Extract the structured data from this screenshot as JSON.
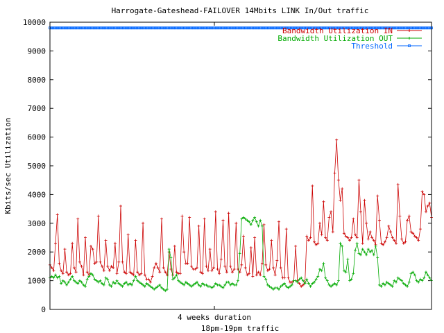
{
  "chart_data": {
    "type": "line",
    "title": "Harrogate-Gateshead-FAILOVER 14Mbits LINK In/Out traffic",
    "xlabel": "18pm-19pm traffic",
    "ylabel": "Kbits/sec Utilization",
    "x_tick_label": "4 weeks duration",
    "ylim": [
      0,
      10000
    ],
    "yticks": [
      0,
      1000,
      2000,
      3000,
      4000,
      5000,
      6000,
      7000,
      8000,
      9000,
      10000
    ],
    "grid": false,
    "legend_position": "top-right",
    "series": [
      {
        "name": "Bandwidth Utilization IN",
        "color": "#cc0000",
        "marker": "plus",
        "values": [
          1550,
          1450,
          1350,
          2300,
          3300,
          1600,
          1350,
          1250,
          2100,
          1300,
          1200,
          1250,
          2300,
          1450,
          1300,
          3150,
          1650,
          1500,
          1200,
          2500,
          1300,
          1200,
          2200,
          2100,
          1600,
          1650,
          3250,
          1650,
          1500,
          1350,
          2400,
          1500,
          1350,
          1500,
          1450,
          2300,
          1250,
          1650,
          3600,
          1650,
          1300,
          1250,
          2600,
          1300,
          1250,
          1200,
          2400,
          1300,
          1200,
          1250,
          3000,
          1200,
          1050,
          1050,
          950,
          1150,
          1450,
          1600,
          1450,
          1300,
          3150,
          1450,
          1300,
          1200,
          2000,
          1400,
          1200,
          2200,
          1300,
          1250,
          1250,
          3250,
          2000,
          1600,
          1600,
          3200,
          1500,
          1400,
          1400,
          1450,
          2900,
          1300,
          1250,
          3150,
          1500,
          1350,
          2100,
          1350,
          1450,
          3400,
          1400,
          1250,
          1750,
          3100,
          1500,
          1300,
          3350,
          1500,
          1300,
          1400,
          3000,
          1400,
          1300,
          1550,
          2550,
          1450,
          1200,
          1250,
          2150,
          1150,
          2500,
          1200,
          1300,
          1200,
          1600,
          2950,
          1550,
          1350,
          1400,
          2400,
          1450,
          1200,
          1700,
          3050,
          1450,
          1100,
          1100,
          2800,
          1100,
          950,
          950,
          1000,
          2200,
          1000,
          900,
          800,
          850,
          950,
          2550,
          2400,
          2500,
          4300,
          2350,
          2250,
          2300,
          3000,
          2600,
          3750,
          2500,
          2400,
          3200,
          3400,
          2700,
          4750,
          5900,
          4500,
          3800,
          4200,
          2650,
          2550,
          2500,
          2400,
          2500,
          3150,
          2600,
          2500,
          4500,
          3400,
          2300,
          3800,
          3000,
          2450,
          2700,
          2500,
          2400,
          2250,
          3950,
          3100,
          2300,
          2250,
          2350,
          2500,
          2900,
          2700,
          2500,
          2400,
          2300,
          4350,
          3250,
          2450,
          2300,
          2350,
          3100,
          3250,
          2700,
          2650,
          2550,
          2500,
          2400,
          2800,
          4100,
          4000,
          3400,
          3600,
          3700,
          3200
        ]
      },
      {
        "name": "Bandwidth Utilization OUT",
        "color": "#00aa00",
        "marker": "plus",
        "values": [
          1100,
          1150,
          1100,
          1200,
          1100,
          1150,
          900,
          1000,
          950,
          850,
          950,
          1050,
          1150,
          1000,
          950,
          900,
          1000,
          950,
          850,
          800,
          1050,
          1150,
          1250,
          1200,
          1050,
          1000,
          950,
          1000,
          900,
          850,
          1100,
          1050,
          850,
          800,
          950,
          900,
          1000,
          900,
          850,
          800,
          900,
          950,
          850,
          900,
          850,
          1000,
          1150,
          1000,
          950,
          900,
          850,
          800,
          900,
          850,
          800,
          750,
          700,
          750,
          800,
          850,
          750,
          700,
          650,
          700,
          2100,
          1800,
          1050,
          1100,
          1200,
          1000,
          950,
          900,
          850,
          950,
          900,
          850,
          800,
          850,
          900,
          950,
          850,
          800,
          900,
          850,
          850,
          800,
          800,
          750,
          800,
          900,
          850,
          850,
          800,
          750,
          850,
          950,
          950,
          850,
          900,
          850,
          850,
          1000,
          1950,
          3150,
          3200,
          3150,
          3100,
          3050,
          2950,
          3100,
          3200,
          3050,
          2900,
          3100,
          2900,
          1150,
          1050,
          850,
          800,
          750,
          700,
          750,
          750,
          700,
          800,
          850,
          900,
          800,
          750,
          800,
          850,
          1000,
          1000,
          950,
          1050,
          1100,
          1000,
          900,
          1050,
          900,
          800,
          900,
          950,
          1050,
          1150,
          1400,
          1350,
          1600,
          1100,
          1000,
          850,
          800,
          850,
          900,
          850,
          1000,
          2300,
          2200,
          1350,
          1300,
          1750,
          1000,
          1050,
          1250,
          2050,
          2300,
          1950,
          1900,
          2100,
          2000,
          1900,
          2100,
          2000,
          2050,
          1900,
          2200,
          1800,
          850,
          800,
          900,
          850,
          950,
          900,
          850,
          800,
          1000,
          950,
          1100,
          1050,
          1000,
          900,
          850,
          800,
          950,
          1250,
          1300,
          1200,
          1000,
          950,
          1050,
          1000,
          1100,
          1300,
          1200,
          1100,
          1000
        ]
      },
      {
        "name": "Threshold",
        "color": "#0066ff",
        "marker": "square",
        "values": [
          9800,
          9800,
          9800,
          9800,
          9800,
          9800,
          9800,
          9800,
          9800,
          9800,
          9800,
          9800,
          9800,
          9800,
          9800,
          9800,
          9800,
          9800,
          9800,
          9800,
          9800,
          9800,
          9800,
          9800,
          9800,
          9800,
          9800,
          9800,
          9800,
          9800,
          9800,
          9800,
          9800,
          9800,
          9800,
          9800,
          9800,
          9800,
          9800,
          9800,
          9800,
          9800,
          9800,
          9800,
          9800,
          9800,
          9800,
          9800,
          9800,
          9800,
          9800,
          9800,
          9800,
          9800,
          9800,
          9800,
          9800,
          9800,
          9800,
          9800,
          9800,
          9800,
          9800,
          9800,
          9800,
          9800,
          9800,
          9800,
          9800,
          9800,
          9800,
          9800,
          9800,
          9800,
          9800,
          9800,
          9800,
          9800,
          9800,
          9800,
          9800,
          9800,
          9800,
          9800,
          9800,
          9800,
          9800,
          9800,
          9800,
          9800,
          9800,
          9800,
          9800,
          9800,
          9800,
          9800,
          9800,
          9800,
          9800,
          9800,
          9800,
          9800,
          9800,
          9800,
          9800,
          9800,
          9800,
          9800,
          9800,
          9800,
          9800,
          9800,
          9800,
          9800,
          9800,
          9800,
          9800,
          9800,
          9800,
          9800,
          9800,
          9800,
          9800,
          9800,
          9800,
          9800,
          9800,
          9800,
          9800,
          9800,
          9800,
          9800,
          9800,
          9800,
          9800,
          9800,
          9800,
          9800,
          9800,
          9800,
          9800,
          9800,
          9800,
          9800,
          9800,
          9800,
          9800,
          9800,
          9800,
          9800,
          9800,
          9800,
          9800,
          9800,
          9800,
          9800,
          9800,
          9800,
          9800,
          9800,
          9800,
          9800,
          9800,
          9800,
          9800,
          9800,
          9800,
          9800,
          9800,
          9800,
          9800,
          9800,
          9800,
          9800,
          9800,
          9800,
          9800,
          9800,
          9800,
          9800,
          9800,
          9800,
          9800,
          9800,
          9800,
          9800,
          9800,
          9800,
          9800,
          9800,
          9800,
          9800,
          9800,
          9800,
          9800,
          9800,
          9800,
          9800,
          9800,
          9800,
          9800,
          9800,
          9800,
          9800,
          9800,
          9800,
          9800,
          9800,
          9800,
          9800,
          9800,
          9800,
          9800,
          9800,
          9800,
          9800,
          9800,
          9800,
          9800,
          9800,
          9800,
          9800,
          9800,
          9800,
          9800,
          9800,
          9800,
          9800,
          9800,
          9800,
          9800,
          9800,
          9800,
          9800,
          9800,
          9800,
          9800,
          9800,
          9800,
          9800,
          9800,
          9800,
          9800,
          9800,
          9800,
          9800,
          9800,
          9800,
          9800,
          9800,
          9800
        ]
      }
    ]
  }
}
